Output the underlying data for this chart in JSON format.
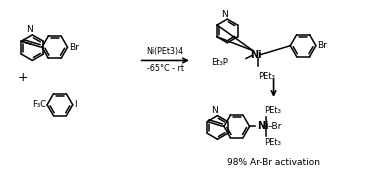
{
  "background_color": "#ffffff",
  "reagent_line1": "Ni(PEt3)4",
  "reagent_line2": "-65°C - rt",
  "yield_text": "98% Ar-Br activation",
  "dpi": 100
}
